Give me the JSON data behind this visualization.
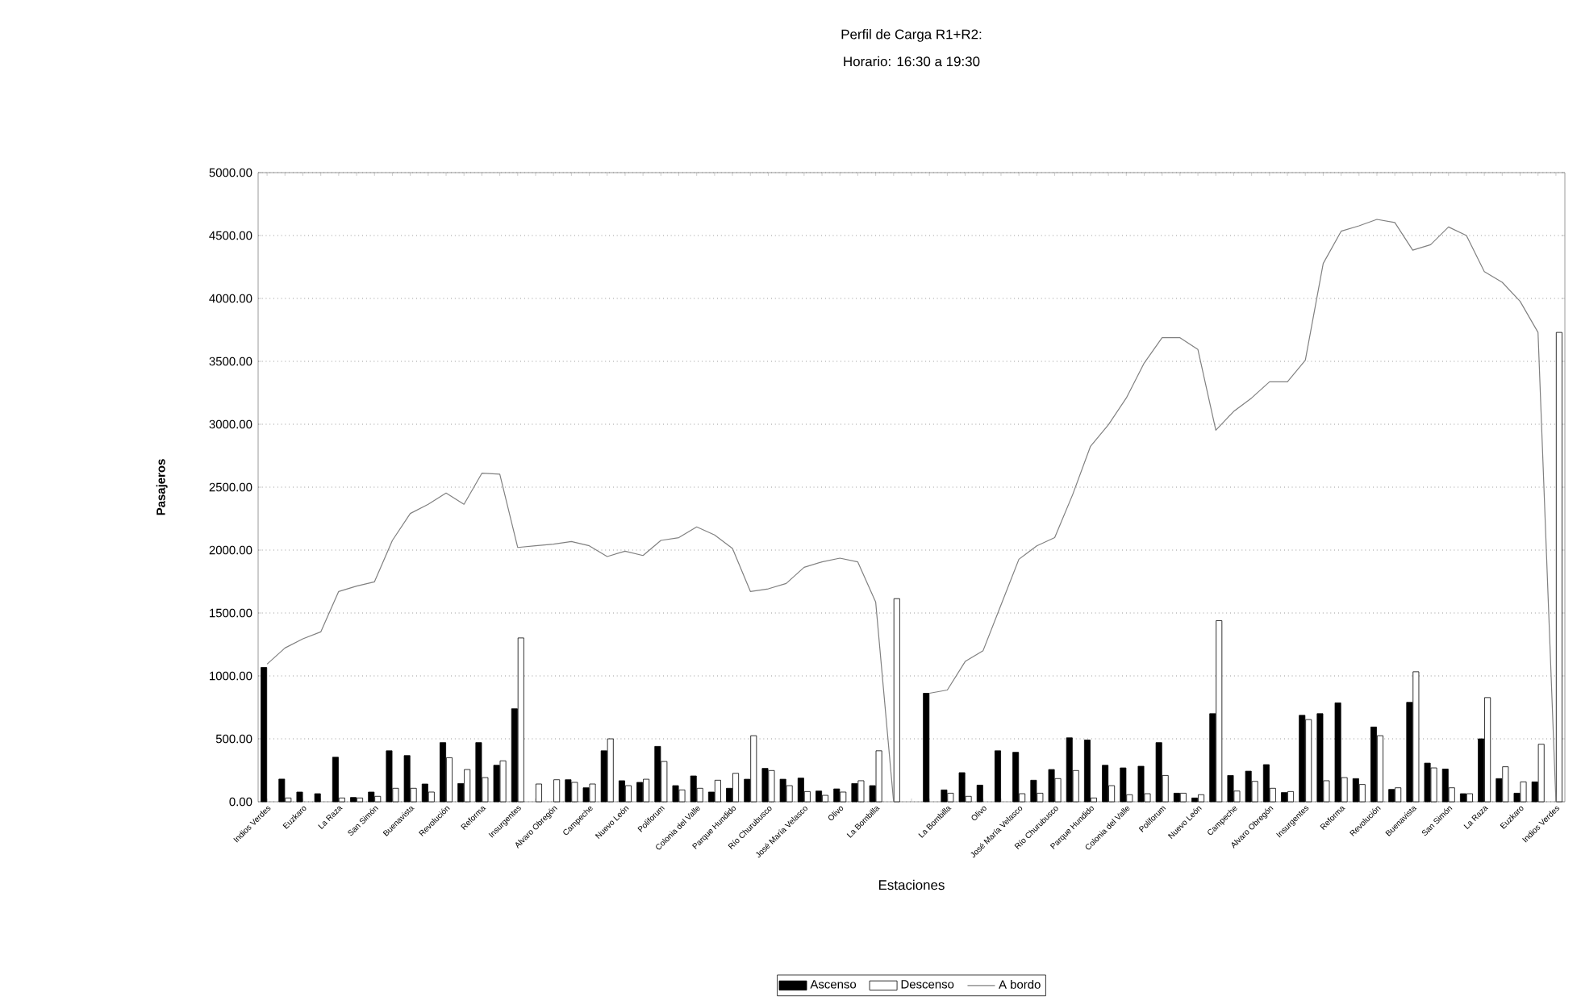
{
  "chart_data": {
    "type": "bar",
    "title": "Perfil de Carga R1+R2:",
    "subtitle": "Horario: 16:30 a 19:30",
    "xlabel": "Estaciones",
    "ylabel": "Pasajeros",
    "categories": [
      "Indios Verdes",
      null,
      "Euzkaro",
      null,
      "La Raza",
      null,
      "San Simón",
      null,
      "Buenavista",
      null,
      "Revolución",
      null,
      "Reforma",
      null,
      "Insurgentes",
      null,
      "Alvaro Obregón",
      null,
      "Campeche",
      null,
      "Nuevo León",
      null,
      "Poliforum",
      null,
      "Colonia del Valle",
      null,
      "Parque Hundido",
      null,
      "Río Churubusco",
      null,
      "José María Velasco",
      null,
      "Olivo",
      null,
      "La Bombilla",
      null,
      null,
      null,
      "La Bombilla",
      null,
      "Olivo",
      null,
      "José María Velasco",
      null,
      "Río Churubusco",
      null,
      "Parque Hundido",
      null,
      "Colonia del Valle",
      null,
      "Poliforum",
      null,
      "Nuevo León",
      null,
      "Campeche",
      null,
      "Alvaro Obregón",
      null,
      "Insurgentes",
      null,
      "Reforma",
      null,
      "Revolución",
      null,
      "Buenavista",
      null,
      "San Simón",
      null,
      "La Raza",
      null,
      "Euzkaro",
      null,
      "Indios Verdes"
    ],
    "series": [
      {
        "name": "Ascenso",
        "color": "#000000",
        "values": [
          1067,
          180,
          77,
          64,
          354,
          34,
          77,
          405,
          367,
          141,
          470,
          145,
          470,
          290,
          739,
          null,
          null,
          175,
          111,
          405,
          167,
          154,
          440,
          128,
          205,
          77,
          107,
          179,
          265,
          179,
          188,
          85,
          102,
          145,
          128,
          null,
          null,
          862,
          94,
          231,
          132,
          405,
          393,
          171,
          256,
          508,
          491,
          290,
          269,
          282,
          470,
          68,
          30,
          700,
          209,
          243,
          295,
          73,
          687,
          700,
          786,
          184,
          594,
          98,
          790,
          307,
          260,
          64,
          500,
          184,
          68,
          158,
          null
        ]
      },
      {
        "name": "Descenso",
        "color": "#ffffff",
        "values": [
          null,
          30,
          null,
          null,
          30,
          30,
          43,
          107,
          107,
          77,
          350,
          256,
          192,
          325,
          1302,
          141,
          175,
          154,
          141,
          500,
          128,
          179,
          320,
          94,
          107,
          171,
          226,
          525,
          248,
          128,
          81,
          51,
          77,
          167,
          405,
          1614,
          null,
          null,
          68,
          43,
          null,
          null,
          64,
          68,
          184,
          248,
          30,
          128,
          56,
          64,
          209,
          68,
          56,
          1439,
          85,
          162,
          107,
          81,
          653,
          167,
          192,
          137,
          525,
          111,
          1033,
          269,
          111,
          64,
          828,
          278,
          158,
          457,
          3730
        ]
      },
      {
        "name": "A bordo",
        "type": "line",
        "color": "#808080",
        "values": [
          1094,
          1222,
          1295,
          1350,
          1671,
          1714,
          1748,
          2077,
          2291,
          2364,
          2453,
          2364,
          2611,
          2603,
          2021,
          2034,
          2047,
          2068,
          2034,
          1949,
          1991,
          1957,
          2077,
          2099,
          2184,
          2120,
          2013,
          1671,
          1692,
          1735,
          1863,
          1906,
          1936,
          1906,
          1586,
          0,
          null,
          862,
          888,
          1115,
          1201,
          1564,
          1927,
          2034,
          2099,
          2440,
          2825,
          2996,
          3209,
          3487,
          3688,
          3688,
          3594,
          2953,
          3102,
          3209,
          3337,
          3337,
          3509,
          4278,
          4534,
          4577,
          4628,
          4603,
          4384,
          4427,
          4568,
          4500,
          4213,
          4128,
          3977,
          3730,
          0
        ]
      }
    ],
    "ylim": [
      0,
      5000
    ],
    "yticks": [
      {
        "value": 0,
        "label": "0.00"
      },
      {
        "value": 500,
        "label": "500.00"
      },
      {
        "value": 1000,
        "label": "1000.00"
      },
      {
        "value": 1500,
        "label": "1500.00"
      },
      {
        "value": 2000,
        "label": "2000.00"
      },
      {
        "value": 2500,
        "label": "2500.00"
      },
      {
        "value": 3000,
        "label": "3000.00"
      },
      {
        "value": 3500,
        "label": "3500.00"
      },
      {
        "value": 4000,
        "label": "4000.00"
      },
      {
        "value": 4500,
        "label": "4500.00"
      },
      {
        "value": 5000,
        "label": "5000.00"
      }
    ],
    "grid": "y",
    "legend": "bottom",
    "marker": "none",
    "line_style": "solid"
  }
}
